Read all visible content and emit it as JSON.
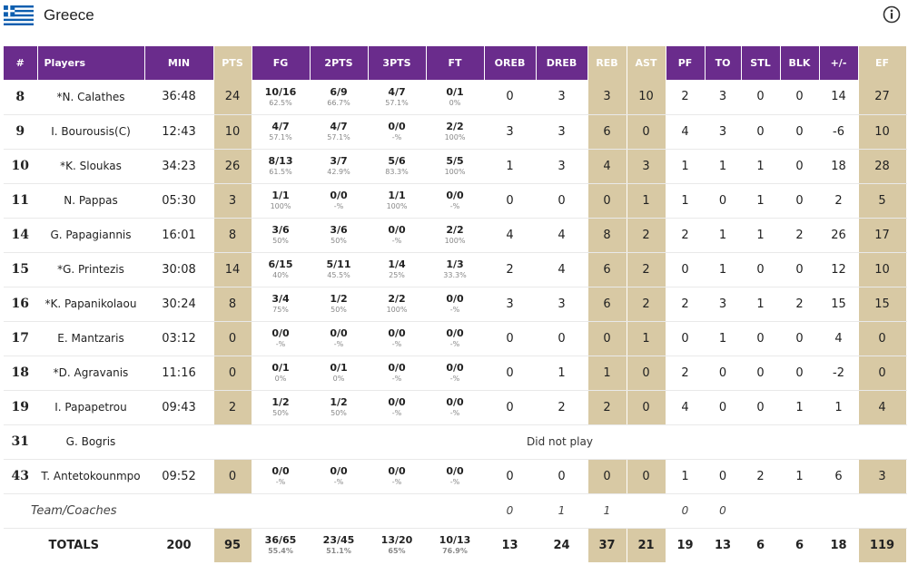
{
  "team": {
    "name": "Greece",
    "info_icon": "info-circle-icon",
    "flag_icon": "greece-flag-icon"
  },
  "colors": {
    "header_purple": "#6a2c8c",
    "highlight_gold": "#d8c9a4"
  },
  "columns": [
    "#",
    "Players",
    "MIN",
    "PTS",
    "FG",
    "2PTS",
    "3PTS",
    "FT",
    "OREB",
    "DREB",
    "REB",
    "AST",
    "PF",
    "TO",
    "STL",
    "BLK",
    "+/-",
    "EF"
  ],
  "players": [
    {
      "num": "8",
      "name": "*N. Calathes",
      "min": "36:48",
      "pts": "24",
      "fg": "10/16",
      "fg_pct": "62.5%",
      "p2": "6/9",
      "p2_pct": "66.7%",
      "p3": "4/7",
      "p3_pct": "57.1%",
      "ft": "0/1",
      "ft_pct": "0%",
      "oreb": "0",
      "dreb": "3",
      "reb": "3",
      "ast": "10",
      "pf": "2",
      "to": "3",
      "stl": "0",
      "blk": "0",
      "pm": "14",
      "ef": "27"
    },
    {
      "num": "9",
      "name": "I. Bourousis(C)",
      "min": "12:43",
      "pts": "10",
      "fg": "4/7",
      "fg_pct": "57.1%",
      "p2": "4/7",
      "p2_pct": "57.1%",
      "p3": "0/0",
      "p3_pct": "-%",
      "ft": "2/2",
      "ft_pct": "100%",
      "oreb": "3",
      "dreb": "3",
      "reb": "6",
      "ast": "0",
      "pf": "4",
      "to": "3",
      "stl": "0",
      "blk": "0",
      "pm": "-6",
      "ef": "10"
    },
    {
      "num": "10",
      "name": "*K. Sloukas",
      "min": "34:23",
      "pts": "26",
      "fg": "8/13",
      "fg_pct": "61.5%",
      "p2": "3/7",
      "p2_pct": "42.9%",
      "p3": "5/6",
      "p3_pct": "83.3%",
      "ft": "5/5",
      "ft_pct": "100%",
      "oreb": "1",
      "dreb": "3",
      "reb": "4",
      "ast": "3",
      "pf": "1",
      "to": "1",
      "stl": "1",
      "blk": "0",
      "pm": "18",
      "ef": "28"
    },
    {
      "num": "11",
      "name": "N. Pappas",
      "min": "05:30",
      "pts": "3",
      "fg": "1/1",
      "fg_pct": "100%",
      "p2": "0/0",
      "p2_pct": "-%",
      "p3": "1/1",
      "p3_pct": "100%",
      "ft": "0/0",
      "ft_pct": "-%",
      "oreb": "0",
      "dreb": "0",
      "reb": "0",
      "ast": "1",
      "pf": "1",
      "to": "0",
      "stl": "1",
      "blk": "0",
      "pm": "2",
      "ef": "5"
    },
    {
      "num": "14",
      "name": "G. Papagiannis",
      "min": "16:01",
      "pts": "8",
      "fg": "3/6",
      "fg_pct": "50%",
      "p2": "3/6",
      "p2_pct": "50%",
      "p3": "0/0",
      "p3_pct": "-%",
      "ft": "2/2",
      "ft_pct": "100%",
      "oreb": "4",
      "dreb": "4",
      "reb": "8",
      "ast": "2",
      "pf": "2",
      "to": "1",
      "stl": "1",
      "blk": "2",
      "pm": "26",
      "ef": "17"
    },
    {
      "num": "15",
      "name": "*G. Printezis",
      "min": "30:08",
      "pts": "14",
      "fg": "6/15",
      "fg_pct": "40%",
      "p2": "5/11",
      "p2_pct": "45.5%",
      "p3": "1/4",
      "p3_pct": "25%",
      "ft": "1/3",
      "ft_pct": "33.3%",
      "oreb": "2",
      "dreb": "4",
      "reb": "6",
      "ast": "2",
      "pf": "0",
      "to": "1",
      "stl": "0",
      "blk": "0",
      "pm": "12",
      "ef": "10"
    },
    {
      "num": "16",
      "name": "*K. Papanikolaou",
      "min": "30:24",
      "pts": "8",
      "fg": "3/4",
      "fg_pct": "75%",
      "p2": "1/2",
      "p2_pct": "50%",
      "p3": "2/2",
      "p3_pct": "100%",
      "ft": "0/0",
      "ft_pct": "-%",
      "oreb": "3",
      "dreb": "3",
      "reb": "6",
      "ast": "2",
      "pf": "2",
      "to": "3",
      "stl": "1",
      "blk": "2",
      "pm": "15",
      "ef": "15"
    },
    {
      "num": "17",
      "name": "E. Mantzaris",
      "min": "03:12",
      "pts": "0",
      "fg": "0/0",
      "fg_pct": "-%",
      "p2": "0/0",
      "p2_pct": "-%",
      "p3": "0/0",
      "p3_pct": "-%",
      "ft": "0/0",
      "ft_pct": "-%",
      "oreb": "0",
      "dreb": "0",
      "reb": "0",
      "ast": "1",
      "pf": "0",
      "to": "1",
      "stl": "0",
      "blk": "0",
      "pm": "4",
      "ef": "0"
    },
    {
      "num": "18",
      "name": "*D. Agravanis",
      "min": "11:16",
      "pts": "0",
      "fg": "0/1",
      "fg_pct": "0%",
      "p2": "0/1",
      "p2_pct": "0%",
      "p3": "0/0",
      "p3_pct": "-%",
      "ft": "0/0",
      "ft_pct": "-%",
      "oreb": "0",
      "dreb": "1",
      "reb": "1",
      "ast": "0",
      "pf": "2",
      "to": "0",
      "stl": "0",
      "blk": "0",
      "pm": "-2",
      "ef": "0"
    },
    {
      "num": "19",
      "name": "I. Papapetrou",
      "min": "09:43",
      "pts": "2",
      "fg": "1/2",
      "fg_pct": "50%",
      "p2": "1/2",
      "p2_pct": "50%",
      "p3": "0/0",
      "p3_pct": "-%",
      "ft": "0/0",
      "ft_pct": "-%",
      "oreb": "0",
      "dreb": "2",
      "reb": "2",
      "ast": "0",
      "pf": "4",
      "to": "0",
      "stl": "0",
      "blk": "1",
      "pm": "1",
      "ef": "4"
    },
    {
      "num": "31",
      "name": "G. Bogris",
      "dnp": "Did not play"
    },
    {
      "num": "43",
      "name": "T. Antetokounmpo",
      "min": "09:52",
      "pts": "0",
      "fg": "0/0",
      "fg_pct": "-%",
      "p2": "0/0",
      "p2_pct": "-%",
      "p3": "0/0",
      "p3_pct": "-%",
      "ft": "0/0",
      "ft_pct": "-%",
      "oreb": "0",
      "dreb": "0",
      "reb": "0",
      "ast": "0",
      "pf": "1",
      "to": "0",
      "stl": "2",
      "blk": "1",
      "pm": "6",
      "ef": "3"
    }
  ],
  "team_coaches": {
    "label": "Team/Coaches",
    "oreb": "0",
    "dreb": "1",
    "reb": "1",
    "pf": "0",
    "to": "0"
  },
  "totals": {
    "label": "TOTALS",
    "min": "200",
    "pts": "95",
    "fg": "36/65",
    "fg_pct": "55.4%",
    "p2": "23/45",
    "p2_pct": "51.1%",
    "p3": "13/20",
    "p3_pct": "65%",
    "ft": "10/13",
    "ft_pct": "76.9%",
    "oreb": "13",
    "dreb": "24",
    "reb": "37",
    "ast": "21",
    "pf": "19",
    "to": "13",
    "stl": "6",
    "blk": "6",
    "pm": "18",
    "ef": "119"
  }
}
